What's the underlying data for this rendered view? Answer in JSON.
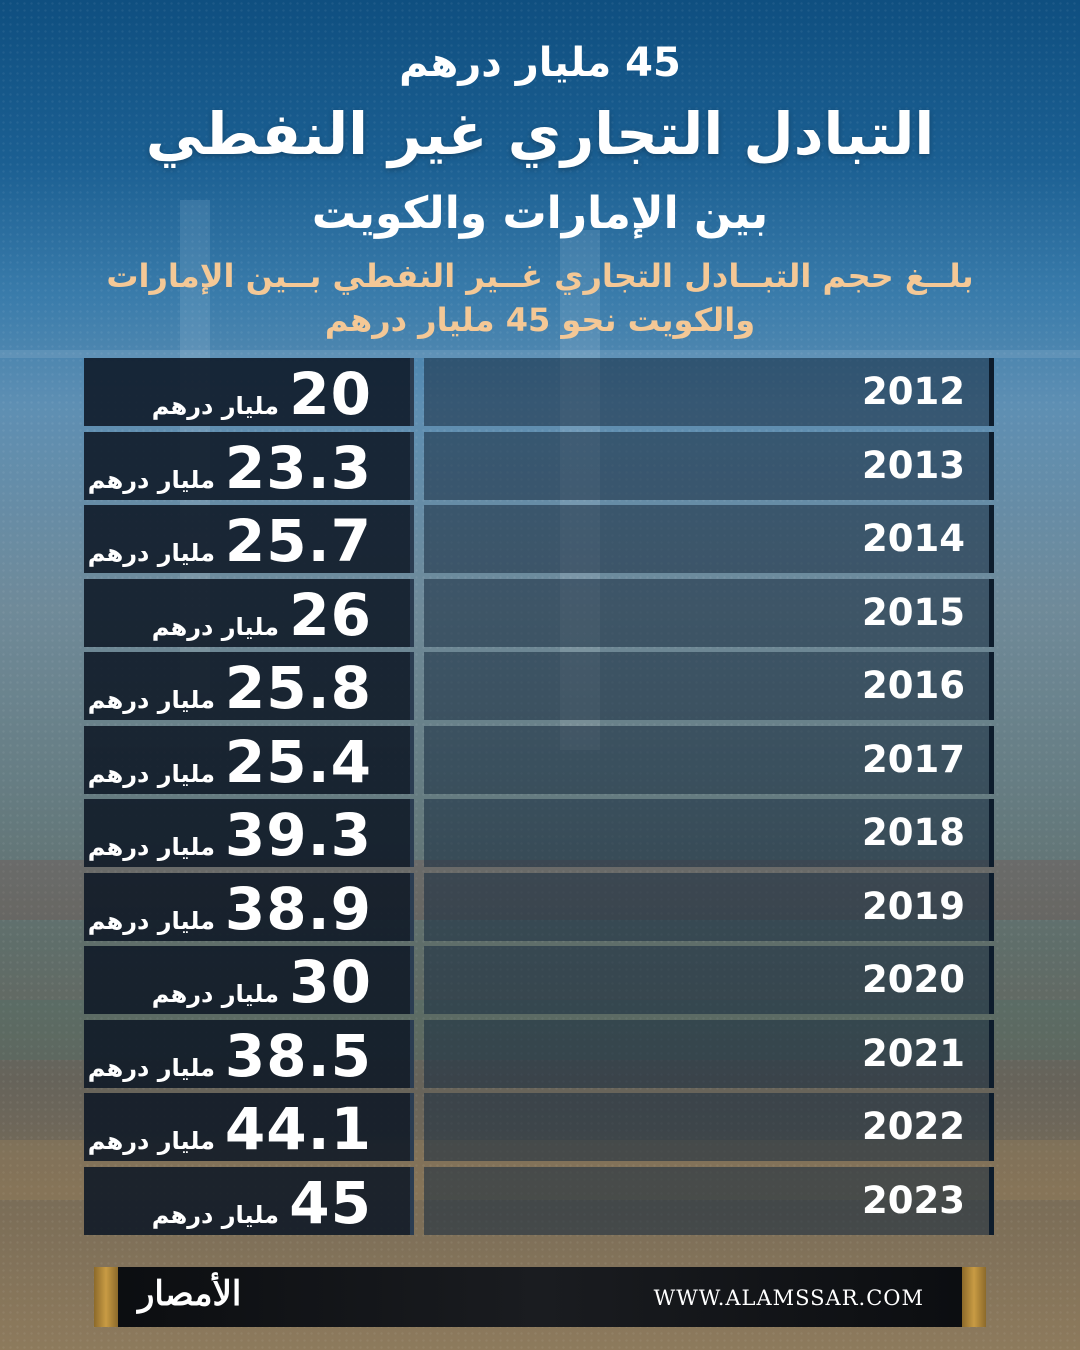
{
  "header": {
    "top_line": "45 مليار درهم",
    "title": "التبادل التجاري غير النفطي",
    "subtitle": "بين الإمارات والكويت",
    "description_line1": "بلــغ حجم التبــادل التجاري غــير النفطي بــين الإمارات",
    "description_line2": "والكويت نحو 45 مليار درهم"
  },
  "unit_label": "مليار درهم",
  "chart_data": {
    "type": "table",
    "columns": [
      "year",
      "value"
    ],
    "rows": [
      {
        "year": "2012",
        "value": "20"
      },
      {
        "year": "2013",
        "value": "23.3"
      },
      {
        "year": "2014",
        "value": "25.7"
      },
      {
        "year": "2015",
        "value": "26"
      },
      {
        "year": "2016",
        "value": "25.8"
      },
      {
        "year": "2017",
        "value": "25.4"
      },
      {
        "year": "2018",
        "value": "39.3"
      },
      {
        "year": "2019",
        "value": "38.9"
      },
      {
        "year": "2020",
        "value": "30"
      },
      {
        "year": "2021",
        "value": "38.5"
      },
      {
        "year": "2022",
        "value": "44.1"
      },
      {
        "year": "2023",
        "value": "45"
      }
    ]
  },
  "footer": {
    "logo_text": "الأمصار",
    "website": "WWW.ALAMSSAR.COM"
  }
}
